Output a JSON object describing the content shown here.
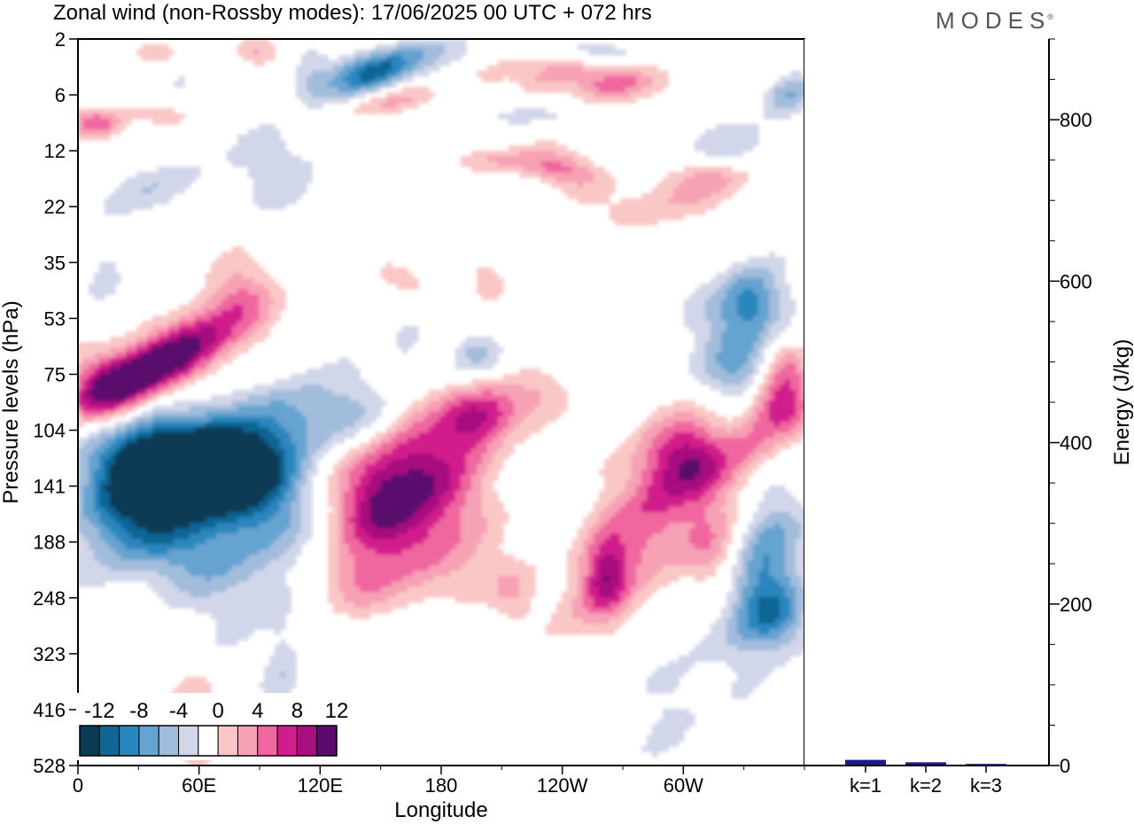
{
  "title": "Zonal wind (non-Rossby modes):  17/06/2025  00 UTC  + 072 hrs",
  "logo_text": "MODES",
  "logo_mark": "®",
  "chart_data": [
    {
      "type": "heatmap",
      "title": "Zonal wind (non-Rossby modes):  17/06/2025  00 UTC  + 072 hrs",
      "xlabel": "Longitude",
      "ylabel": "Pressure levels (hPa)",
      "x_ticks": [
        "0",
        "60E",
        "120E",
        "180",
        "120W",
        "60W"
      ],
      "x_tick_degrees": [
        0,
        60,
        120,
        180,
        240,
        300
      ],
      "xlim": [
        0,
        360
      ],
      "y_ticks": [
        "2",
        "6",
        "12",
        "22",
        "35",
        "53",
        "75",
        "104",
        "141",
        "188",
        "248",
        "323",
        "416",
        "528"
      ],
      "y_axis": "pressure levels, top to bottom",
      "colorbar": {
        "tick_labels": [
          "-12",
          "-8",
          "-4",
          "0",
          "4",
          "8",
          "12"
        ],
        "levels": [
          -14,
          -12,
          -10,
          -8,
          -6,
          -4,
          -2,
          2,
          4,
          6,
          8,
          10,
          12,
          14
        ],
        "colors": [
          "#0b3a54",
          "#106594",
          "#2a86be",
          "#65a3d0",
          "#a2bcdb",
          "#d1d6e9",
          "#ffffff",
          "#f9c7c6",
          "#f7a1b5",
          "#f0669f",
          "#d11d8c",
          "#a70f7f",
          "#5a0b6c"
        ]
      },
      "features": [
        {
          "lon": 42,
          "level": 141,
          "value": -13
        },
        {
          "lon": 30,
          "level": 75,
          "value": 11
        },
        {
          "lon": 170,
          "level": 141,
          "value": 10
        },
        {
          "lon": 288,
          "level": 141,
          "value": 10
        },
        {
          "lon": 192,
          "level": 104,
          "value": 8
        },
        {
          "lon": 352,
          "level": 104,
          "value": 8
        },
        {
          "lon": 10,
          "level": 9,
          "value": 7
        },
        {
          "lon": 272,
          "level": 6,
          "value": 7
        },
        {
          "lon": 132,
          "level": 6,
          "value": -8
        },
        {
          "lon": 340,
          "level": 248,
          "value": -8
        }
      ]
    },
    {
      "type": "bar",
      "ylabel": "Energy (J/kg)",
      "categories": [
        "k=1",
        "k=2",
        "k=3"
      ],
      "values": [
        7,
        4,
        2
      ],
      "ylim": [
        0,
        900
      ],
      "y_ticks": [
        0,
        200,
        400,
        600,
        800
      ],
      "bar_color": "#1a1a8c"
    }
  ]
}
